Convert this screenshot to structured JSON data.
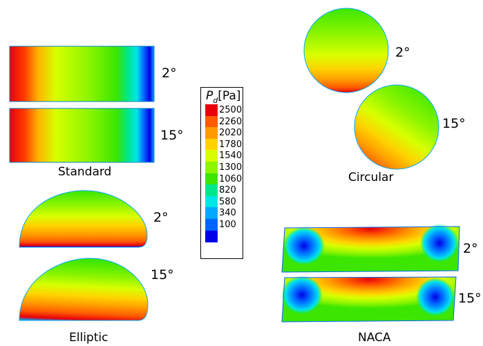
{
  "panels": {
    "standard": {
      "caption": "Standard",
      "angles": [
        "2°",
        "15°"
      ]
    },
    "elliptic": {
      "caption": "Elliptic",
      "angles": [
        "2°",
        "15°"
      ]
    },
    "circular": {
      "caption": "Circular",
      "angles": [
        "2°",
        "15°"
      ]
    },
    "naca": {
      "caption": "NACA",
      "angles": [
        "2°",
        "15°"
      ]
    }
  },
  "legend": {
    "symbol": "P",
    "subscript": "d",
    "unit": "[Pa]",
    "levels": [
      "2500",
      "2260",
      "2020",
      "1780",
      "1540",
      "1300",
      "1060",
      "820",
      "580",
      "340",
      "100"
    ],
    "colors": [
      "#e8000b",
      "#ff5a00",
      "#ff9a00",
      "#ffd200",
      "#d8ff00",
      "#8cf500",
      "#3ce600",
      "#00e68c",
      "#00e6e6",
      "#00a8ff",
      "#0064ff",
      "#0000e6"
    ]
  }
}
